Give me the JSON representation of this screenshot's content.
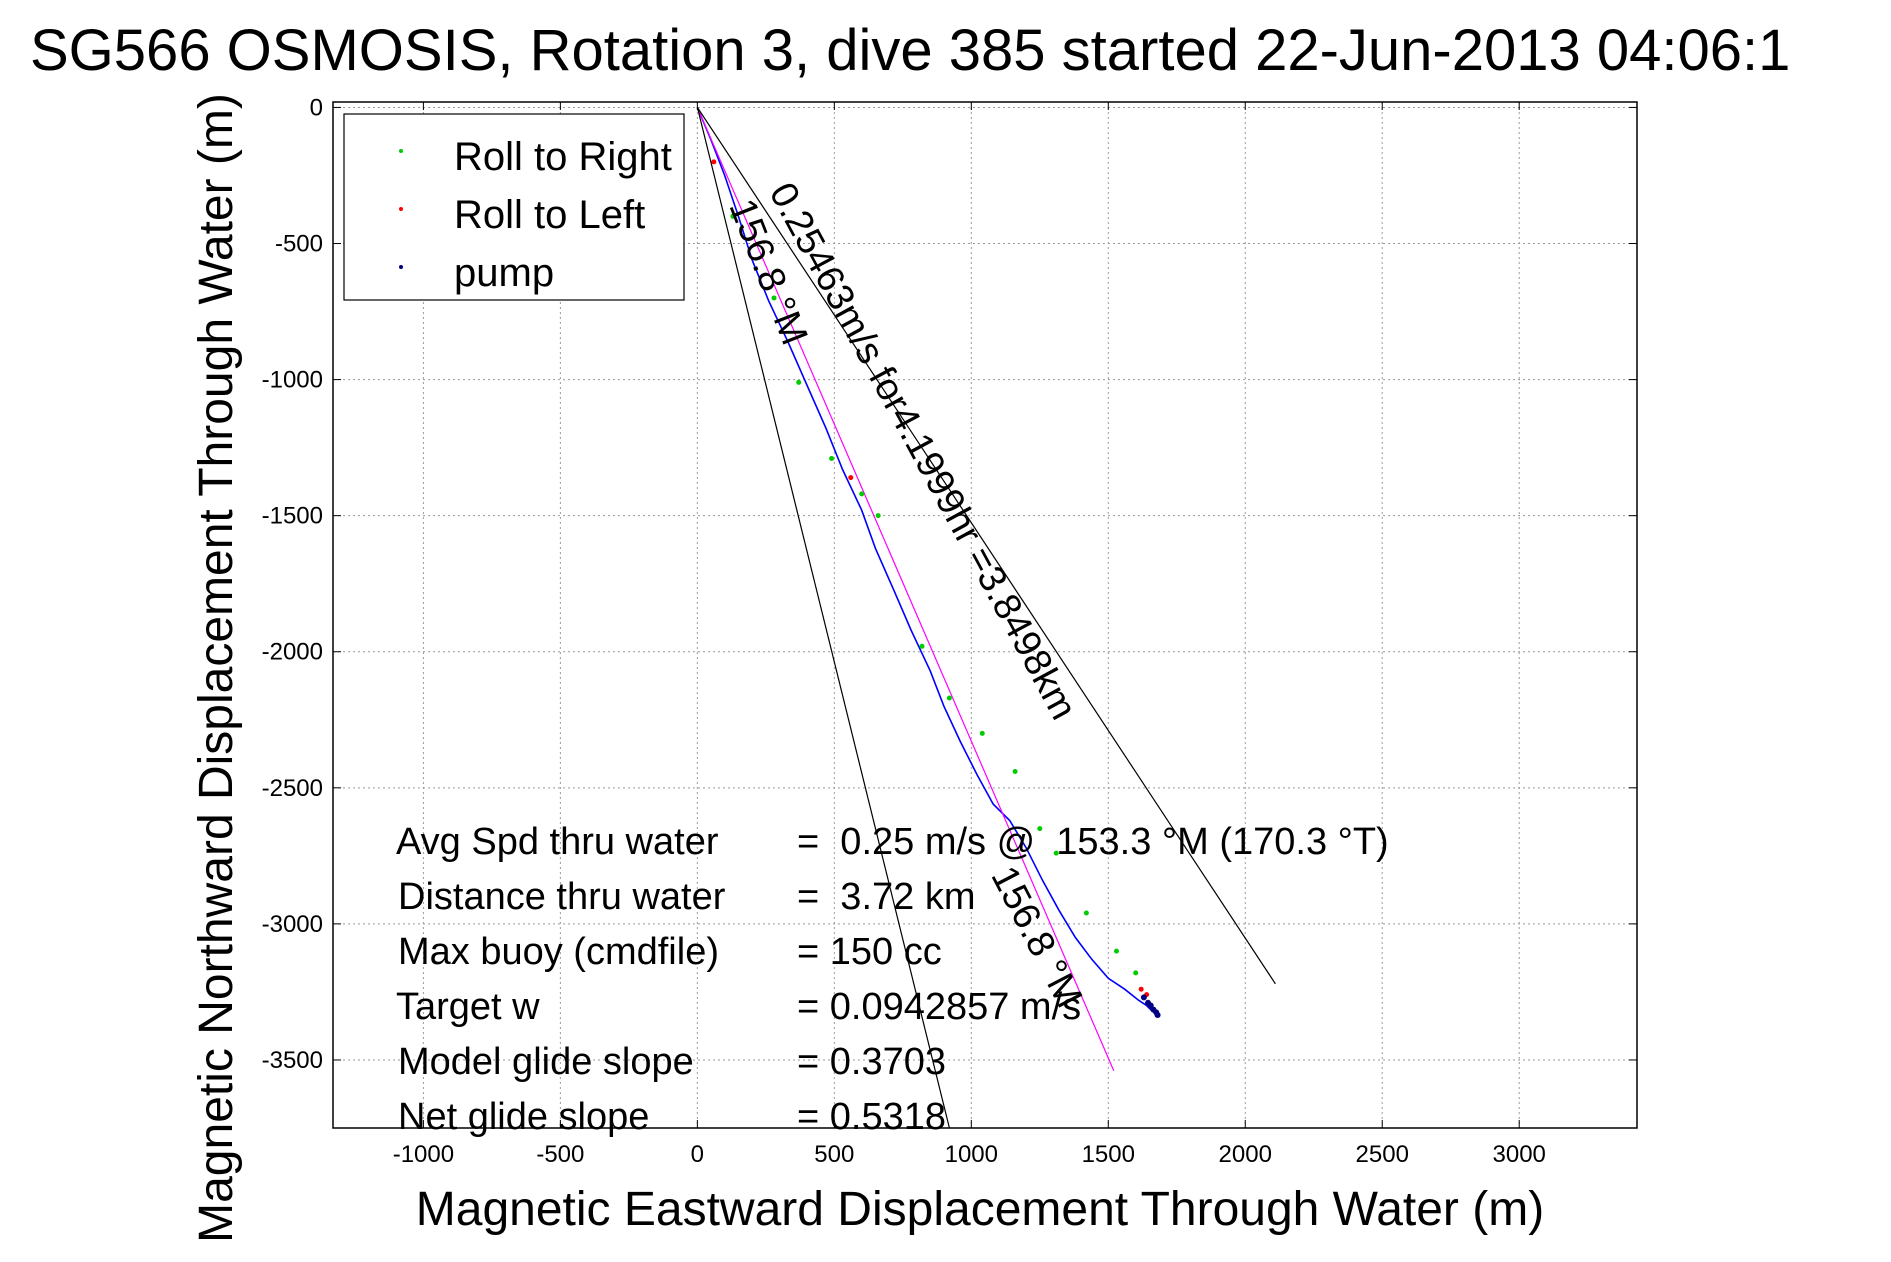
{
  "chart_data": {
    "type": "line",
    "title": "SG566 OSMOSIS, Rotation 3, dive 385 started 22-Jun-2013 04:06:1",
    "xlabel": "Magnetic Eastward Displacement Through Water (m)",
    "ylabel": "Magnetic Northward Displacement Through Water (m)",
    "xlim": [
      -1330,
      3430
    ],
    "ylim": [
      -3750,
      20
    ],
    "xticks": [
      -1000,
      -500,
      0,
      500,
      1000,
      1500,
      2000,
      2500,
      3000
    ],
    "yticks": [
      0,
      -500,
      -1000,
      -1500,
      -2000,
      -2500,
      -3000,
      -3500
    ],
    "grid": true,
    "legend": {
      "placement": "top-left",
      "entries": [
        {
          "name": "Roll to Right",
          "color": "#00cc00"
        },
        {
          "name": "Roll to Left",
          "color": "#ff0000"
        },
        {
          "name": "pump",
          "color": "#000080"
        }
      ]
    },
    "series": [
      {
        "kind": "track",
        "color": "#0000ff",
        "x": [
          0,
          50,
          100,
          150,
          200,
          260,
          330,
          400,
          470,
          530,
          600,
          650,
          720,
          780,
          850,
          900,
          960,
          1020,
          1080,
          1140,
          1200,
          1260,
          1320,
          1380,
          1440,
          1500,
          1560,
          1610,
          1640,
          1660,
          1680
        ],
        "y": [
          0,
          -120,
          -250,
          -400,
          -560,
          -710,
          -860,
          -1020,
          -1180,
          -1330,
          -1480,
          -1620,
          -1780,
          -1920,
          -2070,
          -2200,
          -2330,
          -2450,
          -2560,
          -2620,
          -2720,
          -2840,
          -2950,
          -3050,
          -3130,
          -3200,
          -3240,
          -3280,
          -3300,
          -3320,
          -3335
        ]
      },
      {
        "kind": "heading-line",
        "color": "#ff00ff",
        "x": [
          0,
          1520
        ],
        "y": [
          0,
          -3540
        ]
      },
      {
        "kind": "cone-line",
        "color": "#000000",
        "x": [
          0,
          2110
        ],
        "y": [
          0,
          -3220
        ]
      },
      {
        "kind": "cone-line",
        "color": "#000000",
        "x": [
          0,
          920
        ],
        "y": [
          0,
          -3750
        ]
      }
    ],
    "markers": {
      "roll_right": {
        "color": "#00cc00",
        "x": [
          130,
          280,
          370,
          490,
          600,
          660,
          820,
          920,
          1040,
          1160,
          1250,
          1310,
          1420,
          1530,
          1600
        ],
        "y": [
          -400,
          -700,
          -1010,
          -1290,
          -1420,
          -1500,
          -1980,
          -2170,
          -2300,
          -2440,
          -2650,
          -2740,
          -2960,
          -3100,
          -3180
        ]
      },
      "roll_left": {
        "color": "#ff0000",
        "x": [
          60,
          560,
          1620,
          1640
        ],
        "y": [
          -200,
          -1360,
          -3240,
          -3260
        ]
      },
      "pump": {
        "color": "#000080",
        "x": [
          1630,
          1645,
          1655,
          1665,
          1675,
          1680
        ],
        "y": [
          -3270,
          -3290,
          -3300,
          -3315,
          -3325,
          -3335
        ]
      }
    },
    "annotations": [
      {
        "text": "0.25463m/s for4.1999hr =3.8498km",
        "x": 260,
        "y": -310
      },
      {
        "text": "156.8 °M",
        "x": 115,
        "y": -360
      },
      {
        "text": "156.8 °M",
        "x": 1070,
        "y": -2820
      }
    ],
    "stats": [
      {
        "label": "Avg Spd thru water",
        "value": "=  0.25 m/s @  153.3 °M (170.3 °T)"
      },
      {
        "label": "Distance thru water",
        "value": "=  3.72 km"
      },
      {
        "label": "Max buoy (cmdfile)",
        "value": "= 150 cc"
      },
      {
        "label": "Target w",
        "value": "= 0.0942857 m/s"
      },
      {
        "label": "Model glide slope",
        "value": "= 0.3703"
      },
      {
        "label": "Net glide slope",
        "value": "= 0.5318"
      }
    ]
  }
}
